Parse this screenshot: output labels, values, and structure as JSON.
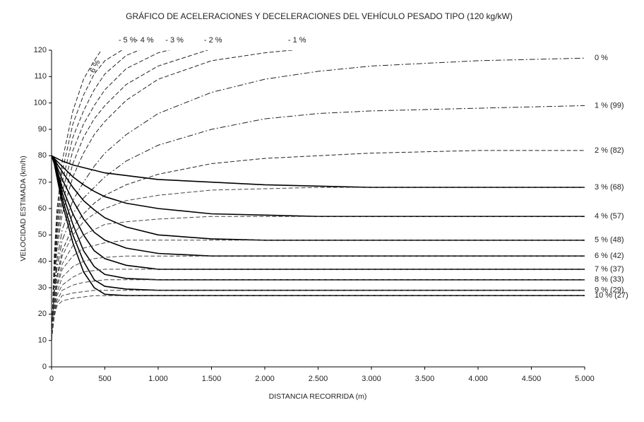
{
  "chart_data": {
    "type": "line",
    "title": "GRÁFICO DE ACELERACIONES Y DECELERACIONES DEL VEHÍCULO PESADO TIPO (120 kg/kW)",
    "x_label": "DISTANCIA RECORRIDA (m)",
    "y_label": "VELOCIDAD ESTIMADA (km/h)",
    "x": [
      0,
      25,
      50,
      100,
      200,
      300,
      400,
      500,
      700,
      1000,
      1500,
      2000,
      2500,
      3000,
      4000,
      5000
    ],
    "xlim": [
      0,
      5000
    ],
    "xticks": [
      0,
      500,
      {
        "value": 1000,
        "label": "1.000"
      },
      {
        "value": 1500,
        "label": "1.500"
      },
      {
        "value": 2000,
        "label": "2.000"
      },
      {
        "value": 2500,
        "label": "2.500"
      },
      {
        "value": 3000,
        "label": "3.000"
      },
      {
        "value": 3500,
        "label": "3.500"
      },
      {
        "value": 4000,
        "label": "4.000"
      },
      {
        "value": 4500,
        "label": "4.500"
      },
      {
        "value": 5000,
        "label": "5.000"
      }
    ],
    "ylim": [
      0,
      120
    ],
    "yticks": [
      0,
      10,
      20,
      30,
      40,
      50,
      60,
      70,
      80,
      90,
      100,
      110,
      120
    ],
    "series": [
      {
        "name": "- 6 %",
        "color": "#222222",
        "style": "dashed",
        "values": [
          10,
          42,
          59,
          78,
          97,
          109,
          116,
          122,
          null,
          null,
          null,
          null,
          null,
          null,
          null,
          null
        ]
      },
      {
        "name": "- 5 %",
        "color": "#222222",
        "style": "dashed",
        "values": [
          10,
          40,
          56,
          74,
          92,
          103,
          111,
          116,
          121,
          null,
          null,
          null,
          null,
          null,
          null,
          null
        ]
      },
      {
        "name": "- 4 %",
        "color": "#222222",
        "style": "dashed",
        "values": [
          10,
          38,
          53,
          70,
          87,
          97,
          105,
          111,
          118,
          123,
          null,
          null,
          null,
          null,
          null,
          null
        ]
      },
      {
        "name": "- 3 %",
        "color": "#222222",
        "style": "dashed",
        "values": [
          10,
          36,
          50,
          66,
          82,
          92,
          99,
          105,
          113,
          119,
          124,
          null,
          null,
          null,
          null,
          null
        ]
      },
      {
        "name": "- 2 %",
        "color": "#222222",
        "style": "dashed",
        "values": [
          10,
          34,
          47,
          62,
          77,
          87,
          94,
          99,
          107,
          114,
          120.5,
          null,
          null,
          null,
          null,
          null
        ]
      },
      {
        "name": "- 1 %",
        "color": "#222222",
        "style": "dashed",
        "values": [
          10,
          32,
          44,
          58,
          72,
          81,
          88,
          93,
          101,
          109,
          116,
          119,
          121,
          null,
          null,
          null
        ]
      },
      {
        "name": "0 %",
        "color": "#222222",
        "style": "dashdot",
        "values": [
          10,
          30,
          40,
          52,
          63,
          70,
          76,
          81,
          88,
          96,
          104,
          109,
          112,
          114,
          116,
          117
        ]
      },
      {
        "name": "1 % (99)",
        "color": "#222222",
        "style": "dashdot",
        "values": [
          10,
          28,
          37,
          48,
          58,
          64,
          68,
          72,
          78,
          84,
          90,
          94,
          96,
          97,
          98,
          99
        ]
      },
      {
        "name": "2 % (82)",
        "color": "#222222",
        "style": "dashed",
        "values": [
          10,
          26,
          34,
          44,
          53,
          58,
          62,
          65,
          69,
          73,
          77,
          79,
          80,
          81,
          82,
          82
        ]
      },
      {
        "name": "3 % (68)",
        "color": "#000000",
        "style": "solid",
        "values": [
          80,
          79.5,
          79,
          78,
          76.5,
          75.5,
          74.5,
          73.5,
          72.5,
          71,
          70,
          69,
          68.5,
          68,
          68,
          68
        ]
      },
      {
        "name": "4 % (57)",
        "color": "#000000",
        "style": "solid",
        "values": [
          80,
          79,
          78,
          76,
          72,
          69,
          66.5,
          64.5,
          62,
          60,
          58,
          57.5,
          57,
          57,
          57,
          57
        ]
      },
      {
        "name": "5 % (48)",
        "color": "#000000",
        "style": "solid",
        "values": [
          80,
          79,
          77,
          74,
          68,
          63,
          59.5,
          56.5,
          53,
          50,
          48.5,
          48,
          48,
          48,
          48,
          48
        ]
      },
      {
        "name": "6 % (42)",
        "color": "#000000",
        "style": "solid",
        "values": [
          80,
          78.5,
          76,
          71,
          63,
          56,
          51,
          48,
          45,
          43,
          42,
          42,
          42,
          42,
          42,
          42
        ]
      },
      {
        "name": "7 % (37)",
        "color": "#000000",
        "style": "solid",
        "values": [
          80,
          78,
          75,
          68,
          58,
          50,
          44,
          41,
          38.5,
          37,
          37,
          37,
          37,
          37,
          37,
          37
        ]
      },
      {
        "name": "8 % (33)",
        "color": "#000000",
        "style": "solid",
        "values": [
          80,
          78,
          74,
          66,
          54,
          44,
          38,
          35,
          33.5,
          33,
          33,
          33,
          33,
          33,
          33,
          33
        ]
      },
      {
        "name": "9 % (29)",
        "color": "#000000",
        "style": "solid",
        "values": [
          80,
          77.5,
          73,
          64,
          50,
          40,
          33,
          30.5,
          29.5,
          29,
          29,
          29,
          29,
          29,
          29,
          29
        ]
      },
      {
        "name": "10 % (27)",
        "color": "#000000",
        "style": "solid",
        "values": [
          80,
          77,
          72,
          62,
          47,
          36,
          30,
          27.5,
          27,
          27,
          27,
          27,
          27,
          27,
          27,
          27
        ]
      },
      {
        "color": "#444444",
        "style": "dashed",
        "values": [
          10,
          25,
          33,
          42,
          50,
          55,
          58,
          60,
          63,
          65,
          67,
          67.5,
          68,
          68,
          68,
          68
        ]
      },
      {
        "color": "#444444",
        "style": "dashed",
        "values": [
          10,
          24,
          31,
          39,
          46,
          50,
          52,
          54,
          55,
          56,
          57,
          57,
          57,
          57,
          57,
          57
        ]
      },
      {
        "color": "#444444",
        "style": "dashed",
        "values": [
          10,
          23,
          30,
          37,
          42,
          45,
          46,
          47,
          48,
          48,
          48,
          48,
          48,
          48,
          48,
          48
        ]
      },
      {
        "color": "#444444",
        "style": "dashed",
        "values": [
          10,
          22,
          28,
          34,
          38,
          40,
          41,
          41.5,
          42,
          42,
          42,
          42,
          42,
          42,
          42,
          42
        ]
      },
      {
        "color": "#444444",
        "style": "dashed",
        "values": [
          10,
          21,
          27,
          31,
          34,
          36,
          36.5,
          37,
          37,
          37,
          37,
          37,
          37,
          37,
          37,
          37
        ]
      },
      {
        "color": "#444444",
        "style": "dashed",
        "values": [
          10,
          20,
          25,
          29,
          31,
          32,
          32.5,
          33,
          33,
          33,
          33,
          33,
          33,
          33,
          33,
          33
        ]
      },
      {
        "color": "#444444",
        "style": "dashed",
        "values": [
          10,
          20,
          24,
          27,
          28,
          28.5,
          29,
          29,
          29,
          29,
          29,
          29,
          29,
          29,
          29,
          29
        ]
      },
      {
        "color": "#444444",
        "style": "dashed",
        "values": [
          10,
          19,
          23,
          25,
          26,
          26.5,
          27,
          27,
          27,
          27,
          27,
          27,
          27,
          27,
          27,
          27
        ]
      }
    ]
  }
}
